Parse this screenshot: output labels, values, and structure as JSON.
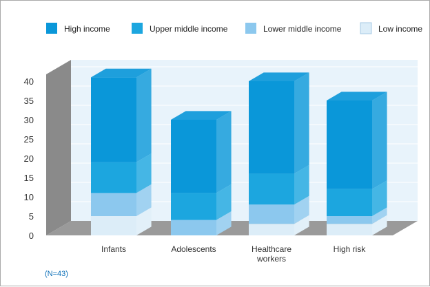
{
  "chart_data": {
    "type": "bar",
    "stacked": true,
    "three_d": true,
    "categories": [
      "Infants",
      "Adolescents",
      "Healthcare workers",
      "High risk"
    ],
    "series": [
      {
        "name": "Low income",
        "values": [
          5,
          0,
          3,
          3
        ]
      },
      {
        "name": "Lower middle income",
        "values": [
          6,
          4,
          5,
          2
        ]
      },
      {
        "name": "Upper middle income",
        "values": [
          8,
          7,
          8,
          7
        ]
      },
      {
        "name": "High income",
        "values": [
          22,
          19,
          24,
          23
        ]
      }
    ],
    "legend_order": [
      "High income",
      "Upper middle income",
      "Lower middle income",
      "Low income"
    ],
    "colors": {
      "High income": "#0a97d9",
      "Upper middle income": "#1ca6df",
      "Lower middle income": "#8cc8ee",
      "Low income": "#dcedf8"
    },
    "y_ticks": [
      "0",
      "5",
      "10",
      "15",
      "20",
      "25",
      "30",
      "35",
      "40"
    ],
    "ylim": [
      0,
      40
    ],
    "legend_position": "top",
    "grid": true,
    "note": "(N=43)"
  }
}
